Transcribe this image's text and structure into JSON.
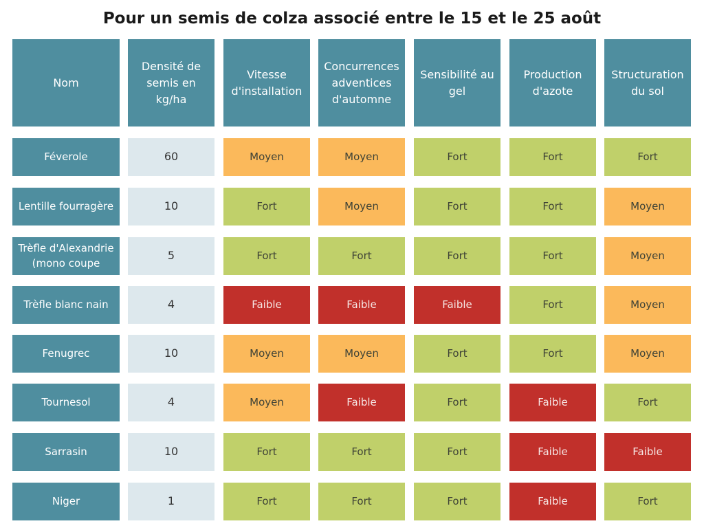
{
  "title": "Pour un semis de colza associé entre le 15 et le 25 août",
  "colors": {
    "header_bg": "#4f8e9f",
    "density_bg": "#dde8ed",
    "Fort": "#c0d06a",
    "Moyen": "#fbb95b",
    "Faible": "#c1302b"
  },
  "headers": [
    "Nom",
    "Densité de semis en kg/ha",
    "Vitesse d'installation",
    "Concurrences adventices d'automne",
    "Sensibilité au gel",
    "Production d'azote",
    "Structuration du sol"
  ],
  "rows": [
    {
      "name": "Féverole",
      "density": "60",
      "values": [
        "Moyen",
        "Moyen",
        "Fort",
        "Fort",
        "Fort"
      ]
    },
    {
      "name": "Lentille fourragère",
      "density": "10",
      "values": [
        "Fort",
        "Moyen",
        "Fort",
        "Fort",
        "Moyen"
      ]
    },
    {
      "name": "Trèfle d'Alexandrie (mono coupe",
      "density": "5",
      "values": [
        "Fort",
        "Fort",
        "Fort",
        "Fort",
        "Moyen"
      ]
    },
    {
      "name": "Trèfle blanc nain",
      "density": "4",
      "values": [
        "Faible",
        "Faible",
        "Faible",
        "Fort",
        "Moyen"
      ]
    },
    {
      "name": "Fenugrec",
      "density": "10",
      "values": [
        "Moyen",
        "Moyen",
        "Fort",
        "Fort",
        "Moyen"
      ]
    },
    {
      "name": "Tournesol",
      "density": "4",
      "values": [
        "Moyen",
        "Faible",
        "Fort",
        "Faible",
        "Fort"
      ]
    },
    {
      "name": "Sarrasin",
      "density": "10",
      "values": [
        "Fort",
        "Fort",
        "Fort",
        "Faible",
        "Faible"
      ]
    },
    {
      "name": "Niger",
      "density": "1",
      "values": [
        "Fort",
        "Fort",
        "Fort",
        "Faible",
        "Fort"
      ]
    }
  ]
}
